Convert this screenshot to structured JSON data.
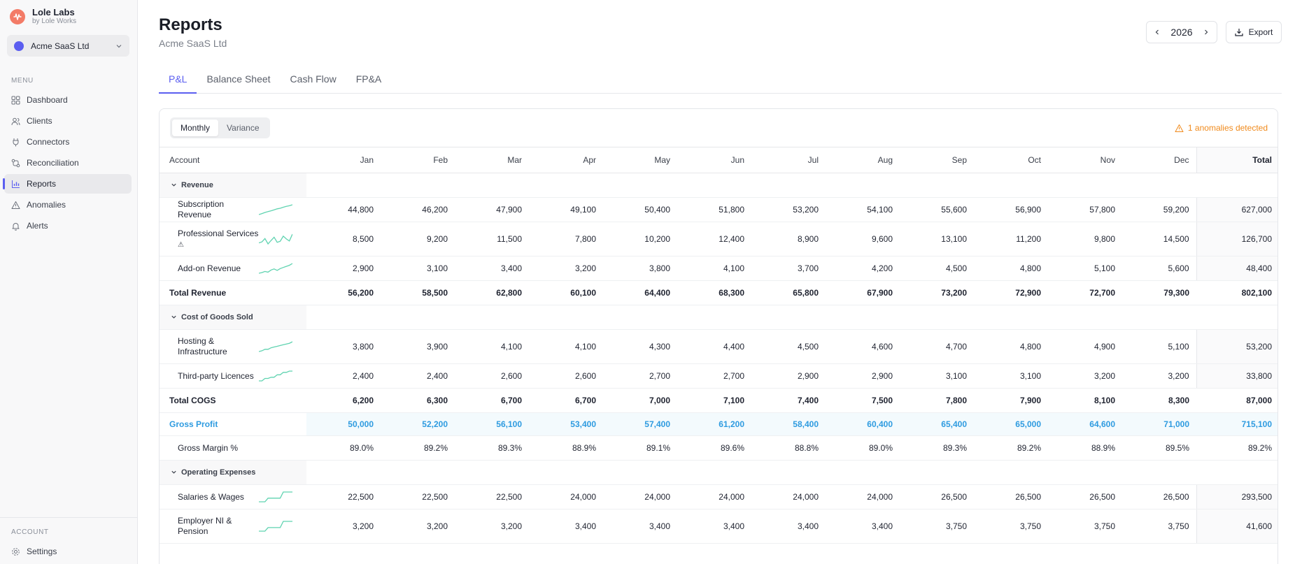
{
  "brand": {
    "name": "Lole Labs",
    "sub": "by Lole Works"
  },
  "client": {
    "name": "Acme SaaS Ltd"
  },
  "menu": {
    "heading": "MENU",
    "items": [
      "Dashboard",
      "Clients",
      "Connectors",
      "Reconciliation",
      "Reports",
      "Anomalies",
      "Alerts"
    ],
    "active": "Reports"
  },
  "account": {
    "heading": "ACCOUNT",
    "settings": "Settings"
  },
  "header": {
    "title": "Reports",
    "subtitle": "Acme SaaS Ltd",
    "year": "2026",
    "export_label": "Export"
  },
  "tabs": [
    "P&L",
    "Balance Sheet",
    "Cash Flow",
    "FP&A"
  ],
  "view": {
    "monthly": "Monthly",
    "variance": "Variance",
    "anomalies": "1 anomalies detected"
  },
  "table": {
    "account_header": "Account",
    "months": [
      "Jan",
      "Feb",
      "Mar",
      "Apr",
      "May",
      "Jun",
      "Jul",
      "Aug",
      "Sep",
      "Oct",
      "Nov",
      "Dec"
    ],
    "total_header": "Total",
    "sections": {
      "revenue": "Revenue",
      "cogs": "Cost of Goods Sold",
      "opex": "Operating Expenses"
    },
    "rows": {
      "subscription": {
        "label": "Subscription Revenue",
        "values": [
          "44,800",
          "46,200",
          "47,900",
          "49,100",
          "50,400",
          "51,800",
          "53,200",
          "54,100",
          "55,600",
          "56,900",
          "57,800",
          "59,200"
        ],
        "total": "627,000"
      },
      "professional": {
        "label": "Professional Services",
        "flag": "⚠",
        "values": [
          "8,500",
          "9,200",
          "11,500",
          "7,800",
          "10,200",
          "12,400",
          "8,900",
          "9,600",
          "13,100",
          "11,200",
          "9,800",
          "14,500"
        ],
        "total": "126,700"
      },
      "addon": {
        "label": "Add-on Revenue",
        "values": [
          "2,900",
          "3,100",
          "3,400",
          "3,200",
          "3,800",
          "4,100",
          "3,700",
          "4,200",
          "4,500",
          "4,800",
          "5,100",
          "5,600"
        ],
        "total": "48,400"
      },
      "total_revenue": {
        "label": "Total Revenue",
        "values": [
          "56,200",
          "58,500",
          "62,800",
          "60,100",
          "64,400",
          "68,300",
          "65,800",
          "67,900",
          "73,200",
          "72,900",
          "72,700",
          "79,300"
        ],
        "total": "802,100"
      },
      "hosting": {
        "label": "Hosting & Infrastructure",
        "values": [
          "3,800",
          "3,900",
          "4,100",
          "4,100",
          "4,300",
          "4,400",
          "4,500",
          "4,600",
          "4,700",
          "4,800",
          "4,900",
          "5,100"
        ],
        "total": "53,200"
      },
      "licences": {
        "label": "Third-party Licences",
        "values": [
          "2,400",
          "2,400",
          "2,600",
          "2,600",
          "2,700",
          "2,700",
          "2,900",
          "2,900",
          "3,100",
          "3,100",
          "3,200",
          "3,200"
        ],
        "total": "33,800"
      },
      "total_cogs": {
        "label": "Total COGS",
        "values": [
          "6,200",
          "6,300",
          "6,700",
          "6,700",
          "7,000",
          "7,100",
          "7,400",
          "7,500",
          "7,800",
          "7,900",
          "8,100",
          "8,300"
        ],
        "total": "87,000"
      },
      "gross_profit": {
        "label": "Gross Profit",
        "values": [
          "50,000",
          "52,200",
          "56,100",
          "53,400",
          "57,400",
          "61,200",
          "58,400",
          "60,400",
          "65,400",
          "65,000",
          "64,600",
          "71,000"
        ],
        "total": "715,100"
      },
      "gross_margin": {
        "label": "Gross Margin %",
        "values": [
          "89.0%",
          "89.2%",
          "89.3%",
          "88.9%",
          "89.1%",
          "89.6%",
          "88.8%",
          "89.0%",
          "89.3%",
          "89.2%",
          "88.9%",
          "89.5%"
        ],
        "total": "89.2%"
      },
      "salaries": {
        "label": "Salaries & Wages",
        "values": [
          "22,500",
          "22,500",
          "22,500",
          "24,000",
          "24,000",
          "24,000",
          "24,000",
          "24,000",
          "26,500",
          "26,500",
          "26,500",
          "26,500"
        ],
        "total": "293,500"
      },
      "employer_ni": {
        "label": "Employer NI & Pension",
        "values": [
          "3,200",
          "3,200",
          "3,200",
          "3,400",
          "3,400",
          "3,400",
          "3,400",
          "3,400",
          "3,750",
          "3,750",
          "3,750",
          "3,750"
        ],
        "total": "41,600"
      }
    }
  },
  "colors": {
    "accent": "#5b5ef0",
    "sparkline": "#5fd3b0",
    "gross_profit": "#2e9be0",
    "anomaly": "#f08a1c"
  }
}
